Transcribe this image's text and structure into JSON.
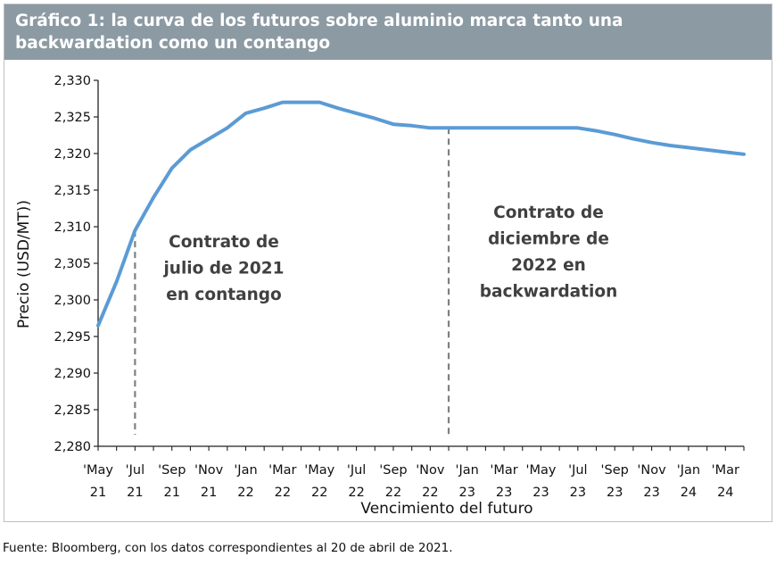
{
  "chart_data": {
    "type": "line",
    "title": "Gráfico 1: la curva de los futuros sobre aluminio marca tanto una backwardation como un contango",
    "xlabel": "Vencimiento del futuro",
    "ylabel": "Precio (USD/MT))",
    "ylim": [
      2280,
      2330
    ],
    "yticks": [
      "2,330",
      "2,325",
      "2,320",
      "2,315",
      "2,310",
      "2,305",
      "2,300",
      "2,295",
      "2,290",
      "2,285",
      "2,280"
    ],
    "xtick_labels": [
      [
        "'May",
        "21"
      ],
      [
        "'Jul",
        "21"
      ],
      [
        "'Sep",
        "21"
      ],
      [
        "'Nov",
        "21"
      ],
      [
        "'Jan",
        "22"
      ],
      [
        "'Mar",
        "22"
      ],
      [
        "'May",
        "22"
      ],
      [
        "'Jul",
        "22"
      ],
      [
        "'Sep",
        "22"
      ],
      [
        "'Nov",
        "22"
      ],
      [
        "'Jan",
        "23"
      ],
      [
        "'Mar",
        "23"
      ],
      [
        "'May",
        "23"
      ],
      [
        "'Jul",
        "23"
      ],
      [
        "'Sep",
        "23"
      ],
      [
        "'Nov",
        "23"
      ],
      [
        "'Jan",
        "24"
      ],
      [
        "'Mar",
        "24"
      ]
    ],
    "x": [
      "May 21",
      "Jun 21",
      "Jul 21",
      "Aug 21",
      "Sep 21",
      "Oct 21",
      "Nov 21",
      "Dec 21",
      "Jan 22",
      "Feb 22",
      "Mar 22",
      "Apr 22",
      "May 22",
      "Jun 22",
      "Jul 22",
      "Aug 22",
      "Sep 22",
      "Oct 22",
      "Nov 22",
      "Dec 22",
      "Jan 23",
      "Feb 23",
      "Mar 23",
      "Apr 23",
      "May 23",
      "Jun 23",
      "Jul 23",
      "Aug 23",
      "Sep 23",
      "Oct 23",
      "Nov 23",
      "Dec 23",
      "Jan 24",
      "Feb 24",
      "Mar 24",
      "Apr 24"
    ],
    "series": [
      {
        "color": "#5b9bd5",
        "values": [
          2296.5,
          2302.5,
          2309.5,
          2314.0,
          2318.0,
          2320.5,
          2322.0,
          2323.5,
          2325.5,
          2326.2,
          2327.0,
          2327.0,
          2327.0,
          2326.2,
          2325.5,
          2324.8,
          2324.0,
          2323.8,
          2323.5,
          2323.5,
          2323.5,
          2323.5,
          2323.5,
          2323.5,
          2323.5,
          2323.5,
          2323.5,
          2323.1,
          2322.6,
          2322.0,
          2321.5,
          2321.1,
          2320.8,
          2320.5,
          2320.2,
          2319.9
        ]
      }
    ],
    "markers": [
      {
        "x": "Jul 21",
        "style": "dashed",
        "color": "#808080"
      },
      {
        "x": "Dec 22",
        "style": "dashed",
        "color": "#808080"
      }
    ],
    "annotations": [
      {
        "lines": [
          "Contrato de",
          "julio de 2021",
          "en contango"
        ]
      },
      {
        "lines": [
          "Contrato de",
          "diciembre de",
          "2022 en",
          "backwardation"
        ]
      }
    ],
    "grid": false,
    "legend": "none"
  },
  "source_note": "Fuente: Bloomberg, con los datos correspondientes al 20 de abril de 2021."
}
